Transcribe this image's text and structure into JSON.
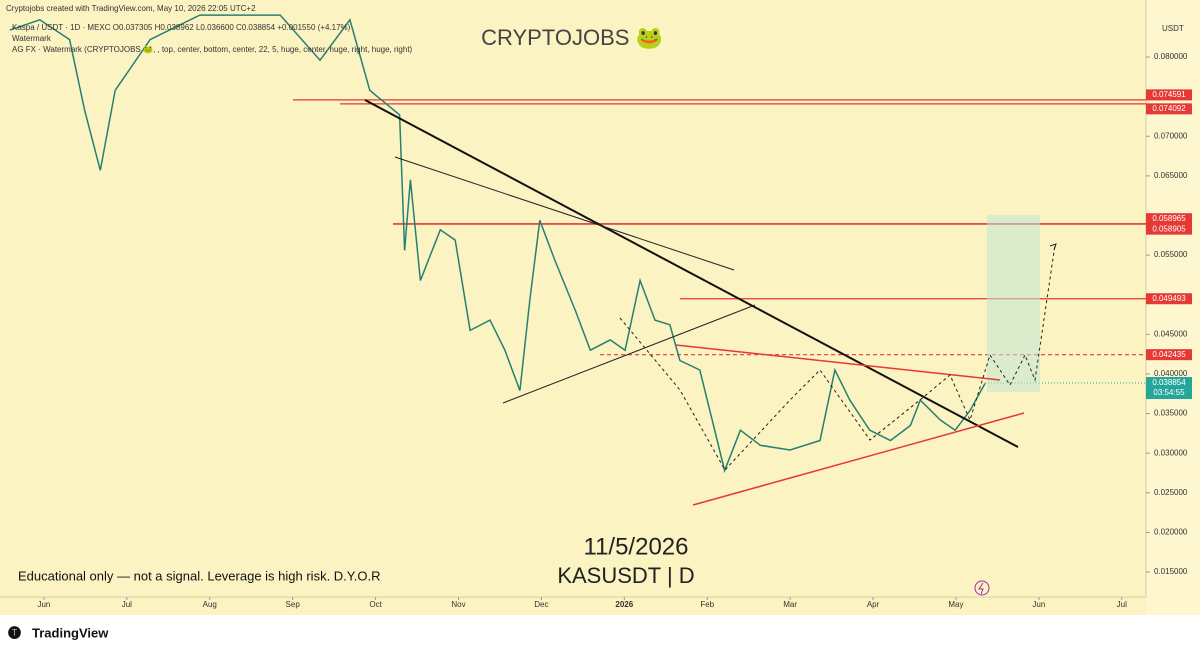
{
  "header": {
    "credit": "Cryptojobs created with TradingView.com, May 10, 2026 22:05 UTC+2",
    "legend_line": "Kaspa / USDT · 1D · MEXC  O0.037305 H0.038962 L0.036600 C0.038854 +0.001550 (+4.17%)",
    "indicator": "Watermark",
    "indicator_settings": "AG FX · Watermark (CRYPTOJOBS 🐸, , top, center, bottom, center, 22, 5, huge, center, huge, right, huge, right)"
  },
  "watermark": "CRYPTOJOBS 🐸",
  "currency": "USDT",
  "date_text": "11/5/2026",
  "symbol_text": "KASUSDT | D",
  "disclaimer": "Educational only — not a signal. Leverage is high risk. D.Y.O.R",
  "footer": "TradingView",
  "chart_data": {
    "type": "line",
    "color": "#26806f",
    "x": [
      -0.41,
      -0.05,
      0.31,
      0.49,
      0.68,
      0.86,
      1.28,
      1.88,
      2.85,
      3.33,
      3.69,
      3.93,
      4.29,
      4.35,
      4.42,
      4.54,
      4.78,
      4.96,
      5.14,
      5.38,
      5.56,
      5.74,
      5.86,
      5.98,
      6.16,
      6.41,
      6.59,
      6.83,
      7.01,
      7.19,
      7.37,
      7.55,
      7.67,
      7.91,
      8.09,
      8.21,
      8.4,
      8.64,
      9.0,
      9.36,
      9.54,
      9.72,
      9.96,
      10.21,
      10.45,
      10.57,
      10.81,
      10.99,
      11.17,
      11.35
    ],
    "values": [
      0.0834,
      0.0847,
      0.0822,
      0.0733,
      0.0657,
      0.0758,
      0.0822,
      0.0853,
      0.0853,
      0.0796,
      0.0847,
      0.0758,
      0.0727,
      0.0556,
      0.0645,
      0.0518,
      0.0582,
      0.0569,
      0.0455,
      0.0468,
      0.043,
      0.0379,
      0.0493,
      0.0594,
      0.0544,
      0.048,
      0.043,
      0.0443,
      0.043,
      0.0518,
      0.0468,
      0.0462,
      0.0417,
      0.0405,
      0.0329,
      0.0278,
      0.0329,
      0.031,
      0.0304,
      0.0316,
      0.0405,
      0.0367,
      0.0329,
      0.0316,
      0.0335,
      0.0367,
      0.0342,
      0.0329,
      0.0354,
      0.0388
    ],
    "xlim": [
      -0.53,
      13.28
    ],
    "xticks": [
      {
        "value": 0,
        "label": "Jun"
      },
      {
        "value": 1,
        "label": "Jul"
      },
      {
        "value": 2,
        "label": "Aug"
      },
      {
        "value": 3,
        "label": "Sep"
      },
      {
        "value": 4,
        "label": "Oct"
      },
      {
        "value": 5,
        "label": "Nov"
      },
      {
        "value": 6,
        "label": "Dec"
      },
      {
        "value": 7,
        "label": "2026"
      },
      {
        "value": 8,
        "label": "Feb"
      },
      {
        "value": 9,
        "label": "Mar"
      },
      {
        "value": 10,
        "label": "Apr"
      },
      {
        "value": 11,
        "label": "May"
      },
      {
        "value": 12,
        "label": "Jun"
      },
      {
        "value": 13,
        "label": "Jul"
      }
    ],
    "ylim": [
      0.0121,
      0.0872
    ],
    "yticks": [
      {
        "value": 0.08,
        "label": "0.080000"
      },
      {
        "value": 0.07,
        "label": "0.070000"
      },
      {
        "value": 0.065,
        "label": "0.065000"
      },
      {
        "value": 0.055,
        "label": "0.055000"
      },
      {
        "value": 0.045,
        "label": "0.045000"
      },
      {
        "value": 0.04,
        "label": "0.040000"
      },
      {
        "value": 0.035,
        "label": "0.035000"
      },
      {
        "value": 0.03,
        "label": "0.030000"
      },
      {
        "value": 0.025,
        "label": "0.025000"
      },
      {
        "value": 0.02,
        "label": "0.020000"
      },
      {
        "value": 0.015,
        "label": "0.015000"
      }
    ],
    "levels": [
      {
        "value": 0.074591,
        "style": "solid"
      },
      {
        "value": 0.074092,
        "style": "solid"
      },
      {
        "value": 0.058965,
        "style": "solid"
      },
      {
        "value": 0.058905,
        "style": "solid"
      },
      {
        "value": 0.049493,
        "style": "solid"
      },
      {
        "value": 0.042435,
        "style": "dashed"
      }
    ],
    "level_color": "#e53935",
    "last_price": 0.038854,
    "countdown": "03:54:55",
    "last_color": "#26a69a"
  }
}
